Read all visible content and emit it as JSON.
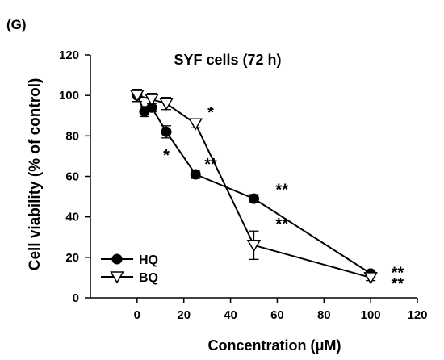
{
  "panel_label": "(G)",
  "chart_data": {
    "type": "line",
    "title": "SYF cells (72 h)",
    "xlabel": "Concentration (μM)",
    "ylabel": "Cell viability (% of control)",
    "xlim": [
      -20,
      120
    ],
    "ylim": [
      0,
      120
    ],
    "xticks": [
      0,
      20,
      40,
      60,
      80,
      100,
      120
    ],
    "yticks": [
      0,
      20,
      40,
      60,
      80,
      100,
      120
    ],
    "grid": false,
    "legend_position": "bottom-left",
    "series": [
      {
        "name": "HQ",
        "marker": "filled-circle",
        "color": "#000000",
        "x": [
          0,
          3.125,
          6.25,
          12.5,
          25,
          50,
          100
        ],
        "y": [
          100,
          92,
          94,
          82,
          61,
          49,
          12
        ],
        "error": [
          3,
          2.5,
          2,
          3,
          2,
          2,
          1.5
        ]
      },
      {
        "name": "BQ",
        "marker": "open-triangle-down",
        "color": "#000000",
        "x": [
          0,
          6.25,
          12.5,
          25,
          50,
          100
        ],
        "y": [
          100,
          98,
          96,
          86,
          26,
          10
        ],
        "error": [
          3,
          3,
          3,
          2,
          7,
          1.5
        ]
      }
    ],
    "annotations": [
      {
        "text": "*",
        "x": 12.5,
        "y": 71
      },
      {
        "text": "*",
        "x": 31.5,
        "y": 92
      },
      {
        "text": "**",
        "x": 31.5,
        "y": 66.5
      },
      {
        "text": "**",
        "x": 62,
        "y": 54
      },
      {
        "text": "**",
        "x": 62,
        "y": 37
      },
      {
        "text": "**",
        "x": 111.5,
        "y": 13
      },
      {
        "text": "**",
        "x": 111.5,
        "y": 7.5
      }
    ]
  }
}
